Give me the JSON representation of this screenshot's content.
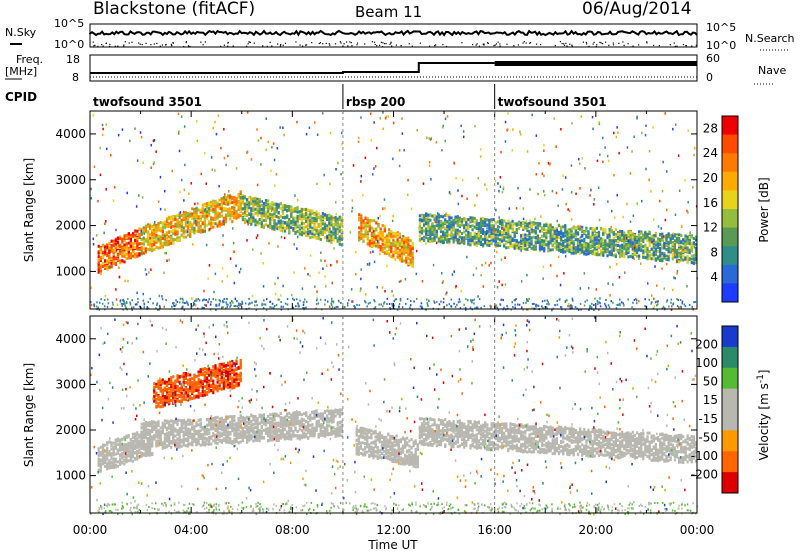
{
  "header": {
    "title": "Blackstone (fitACF)",
    "beam": "Beam 11",
    "date": "06/Aug/2014"
  },
  "nsky_panel": {
    "left_label": "N.Sky",
    "right_label": "N.Search",
    "left_ticks": [
      "10^5",
      "10^0"
    ],
    "right_ticks": [
      "10^5",
      "10^0"
    ]
  },
  "freq_panel": {
    "left_label_1": "Freq.",
    "left_label_2": "[MHz]",
    "left_ticks": [
      "18",
      "8"
    ],
    "right_label": "Nave",
    "right_ticks": [
      "60",
      "0"
    ]
  },
  "cpid_panel": {
    "label": "CPID",
    "segments": [
      {
        "name": "twofsound 3501",
        "start": 0,
        "end": 10
      },
      {
        "name": "rbsp 200",
        "start": 10,
        "end": 16
      },
      {
        "name": "twofsound 3501",
        "start": 16,
        "end": 24
      }
    ]
  },
  "chart_data": [
    {
      "type": "heatmap",
      "title": "",
      "xlabel": "Time UT",
      "ylabel": "Slant Range [km]",
      "xlim": [
        0,
        24
      ],
      "ylim": [
        180,
        4500
      ],
      "x_tick_labels": [
        "00:00",
        "04:00",
        "08:00",
        "12:00",
        "16:00",
        "20:00",
        "00:00"
      ],
      "y_ticks": [
        1000,
        2000,
        3000,
        4000
      ],
      "colorbar": {
        "label": "Power [dB]",
        "ticks": [
          4,
          8,
          12,
          16,
          20,
          24,
          28
        ],
        "range": [
          0,
          30
        ],
        "colors": [
          "#1e3cff",
          "#2a6ad8",
          "#2f8f86",
          "#5a9a54",
          "#93bd3a",
          "#e8d21c",
          "#ffaa00",
          "#ff7a00",
          "#ff4a00",
          "#ee0000"
        ]
      },
      "bands": [
        {
          "t_start": 0.3,
          "t_end": 2,
          "range_start": 1300,
          "range_end": 1700,
          "value": 24
        },
        {
          "t_start": 2,
          "t_end": 6,
          "range_start": 1700,
          "range_end": 2500,
          "value": 18
        },
        {
          "t_start": 6,
          "t_end": 10,
          "range_start": 2400,
          "range_end": 1900,
          "value": 12
        },
        {
          "t_start": 10.6,
          "t_end": 12.8,
          "range_start": 2000,
          "range_end": 1400,
          "value": 20
        },
        {
          "t_start": 13,
          "t_end": 24,
          "range_start": 2000,
          "range_end": 1500,
          "value": 10
        }
      ]
    },
    {
      "type": "heatmap",
      "title": "",
      "xlabel": "Time UT",
      "ylabel": "Slant Range [km]",
      "xlim": [
        0,
        24
      ],
      "ylim": [
        180,
        4500
      ],
      "x_tick_labels": [
        "00:00",
        "04:00",
        "08:00",
        "12:00",
        "16:00",
        "20:00",
        "00:00"
      ],
      "y_ticks": [
        1000,
        2000,
        3000,
        4000
      ],
      "colorbar": {
        "label": "Velocity [m s^-1]",
        "ticks": [
          200,
          100,
          50,
          15,
          -15,
          -50,
          -100,
          -200
        ],
        "range": [
          -250,
          250
        ],
        "colors": [
          "#1a3acc",
          "#2a8a6a",
          "#55bb33",
          "#b8b8b0",
          "#b8b8b0",
          "#ff9900",
          "#ff6600",
          "#dd0000"
        ]
      },
      "bands": [
        {
          "t_start": 0.3,
          "t_end": 2.5,
          "range_start": 1400,
          "range_end": 1800,
          "value": -5
        },
        {
          "t_start": 2.5,
          "t_end": 6,
          "range_start": 2800,
          "range_end": 3300,
          "value": -180
        },
        {
          "t_start": 2,
          "t_end": 10,
          "range_start": 1900,
          "range_end": 2200,
          "value": -40
        },
        {
          "t_start": 10.5,
          "t_end": 13,
          "range_start": 1800,
          "range_end": 1500,
          "value": 30
        },
        {
          "t_start": 13,
          "t_end": 24,
          "range_start": 2000,
          "range_end": 1600,
          "value": 0
        }
      ]
    }
  ]
}
